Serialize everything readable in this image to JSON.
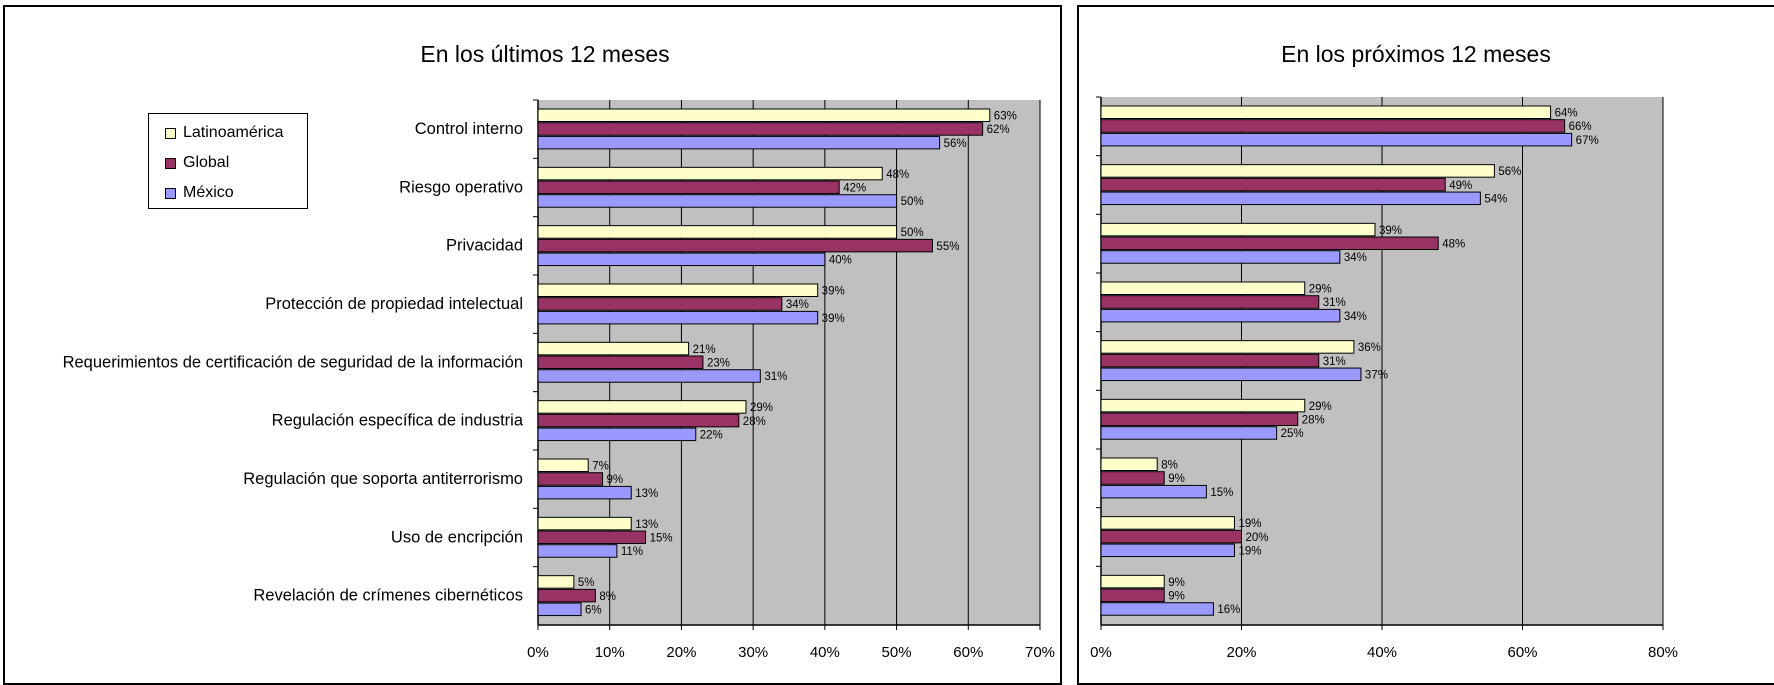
{
  "colors": {
    "latam": "#ffffcc",
    "global": "#993366",
    "mexico": "#9999ff",
    "plot_bg": "#c0c0c0"
  },
  "legend": {
    "latam": "Latinoamérica",
    "global": "Global",
    "mexico": "México"
  },
  "chart_data": [
    {
      "type": "bar",
      "orientation": "horizontal",
      "title": "En los últimos 12 meses",
      "categories": [
        "Control interno",
        "Riesgo operativo",
        "Privacidad",
        "Protección de propiedad intelectual",
        "Requerimientos de certificación de seguridad de la información",
        "Regulación específica de industria",
        "Regulación que soporta antiterrorismo",
        "Uso de encripción",
        "Revelación de crímenes cibernéticos"
      ],
      "series": [
        {
          "name": "Latinoamérica",
          "values": [
            63,
            48,
            50,
            39,
            21,
            29,
            7,
            13,
            5
          ]
        },
        {
          "name": "Global",
          "values": [
            62,
            42,
            55,
            34,
            23,
            28,
            9,
            15,
            8
          ]
        },
        {
          "name": "México",
          "values": [
            56,
            50,
            40,
            39,
            31,
            22,
            13,
            11,
            6
          ]
        }
      ],
      "xlim": [
        0,
        70
      ],
      "xticks": [
        0,
        10,
        20,
        30,
        40,
        50,
        60,
        70
      ],
      "tick_suffix": "%",
      "grid": true,
      "legend_position": "top-left"
    },
    {
      "type": "bar",
      "orientation": "horizontal",
      "title": "En los próximos 12 meses",
      "categories": [
        "Control interno",
        "Riesgo operativo",
        "Privacidad",
        "Protección de propiedad intelectual",
        "Requerimientos de certificación de seguridad de la información",
        "Regulación específica de industria",
        "Regulación que soporta antiterrorismo",
        "Uso de encripción",
        "Revelación de crímenes cibernéticos"
      ],
      "series": [
        {
          "name": "Latinoamérica",
          "values": [
            64,
            56,
            39,
            29,
            36,
            29,
            8,
            19,
            9
          ]
        },
        {
          "name": "Global",
          "values": [
            66,
            49,
            48,
            31,
            31,
            28,
            9,
            20,
            9
          ]
        },
        {
          "name": "México",
          "values": [
            67,
            54,
            34,
            34,
            37,
            25,
            15,
            19,
            16
          ]
        }
      ],
      "xlim": [
        0,
        80
      ],
      "xticks": [
        0,
        20,
        40,
        60,
        80
      ],
      "tick_suffix": "%",
      "grid": true
    }
  ]
}
